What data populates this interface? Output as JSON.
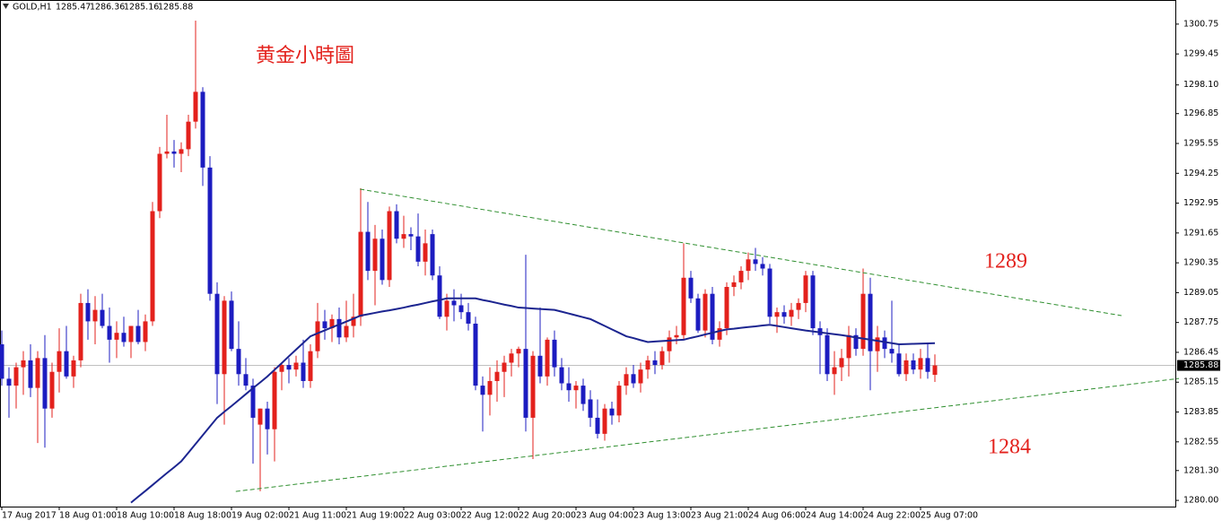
{
  "chart_data": {
    "type": "candlestick",
    "title": "黄金小時圖",
    "symbol": "GOLD,H1",
    "annotations": [
      "1289",
      "1284"
    ],
    "up_color": "#e3211c",
    "down_color": "#1c1cc0",
    "categories": [
      "17 Aug 2017",
      null,
      null,
      null,
      null,
      null,
      null,
      null,
      "18 Aug 01:00",
      null,
      null,
      null,
      null,
      null,
      null,
      null,
      "18 Aug 10:00",
      null,
      null,
      null,
      null,
      null,
      null,
      null,
      "18 Aug 18:00",
      null,
      null,
      null,
      null,
      null,
      null,
      null,
      "19 Aug 02:00",
      null,
      null,
      null,
      null,
      null,
      null,
      null,
      "21 Aug 11:00",
      null,
      null,
      null,
      null,
      null,
      null,
      null,
      "21 Aug 19:00",
      null,
      null,
      null,
      null,
      null,
      null,
      null,
      "22 Aug 03:00",
      null,
      null,
      null,
      null,
      null,
      null,
      null,
      "22 Aug 12:00",
      null,
      null,
      null,
      null,
      null,
      null,
      null,
      "22 Aug 20:00",
      null,
      null,
      null,
      null,
      null,
      null,
      null,
      "23 Aug 04:00",
      null,
      null,
      null,
      null,
      null,
      null,
      null,
      "23 Aug 13:00",
      null,
      null,
      null,
      null,
      null,
      null,
      null,
      "23 Aug 21:00",
      null,
      null,
      null,
      null,
      null,
      null,
      null,
      "24 Aug 06:00",
      null,
      null,
      null,
      null,
      null,
      null,
      null,
      "24 Aug 14:00",
      null,
      null,
      null,
      null,
      null,
      null,
      null,
      "24 Aug 22:00",
      null,
      null,
      null,
      null,
      null,
      null,
      null,
      "25 Aug 07:00",
      null,
      null
    ],
    "open": [
      1286.8,
      1285.3,
      1285.0,
      1285.8,
      1286.1,
      1284.9,
      1286.2,
      1284.0,
      1285.6,
      1286.5,
      1285.4,
      1286.1,
      1288.6,
      1287.8,
      1288.3,
      1287.6,
      1287.0,
      1287.3,
      1286.9,
      1287.6,
      1286.9,
      1287.8,
      1292.6,
      1295.1,
      1295.2,
      1295.1,
      1295.3,
      1296.5,
      1297.8,
      1294.5,
      1289.0,
      1285.5,
      1288.7,
      1286.6,
      1285.5,
      1285.0,
      1283.3,
      1284.0,
      1283.1,
      1285.6,
      1285.9,
      1285.7,
      1286.0,
      1285.2,
      1286.5,
      1287.8,
      1287.5,
      1287.9,
      1287.1,
      1287.6,
      1288.0,
      1291.7,
      1290.0,
      1291.4,
      1289.6,
      1292.6,
      1291.4,
      1291.6,
      1291.5,
      1290.4,
      1291.6,
      1289.8,
      1288.0,
      1288.7,
      1288.5,
      1288.2,
      1287.7,
      1285.0,
      1284.6,
      1285.2,
      1285.6,
      1286.0,
      1286.4,
      1286.6,
      1283.6,
      1286.3,
      1285.4,
      1287.0,
      1285.8,
      1285.1,
      1284.8,
      1285.0,
      1284.4,
      1283.6,
      1282.9,
      1284.0,
      1283.7,
      1285.0,
      1285.5,
      1285.1,
      1285.7,
      1286.1,
      1285.9,
      1286.5,
      1287.1,
      1287.2,
      1289.7,
      1288.8,
      1287.4,
      1289.0,
      1287.0,
      1287.5,
      1289.3,
      1289.5,
      1290.0,
      1290.5,
      1290.3,
      1290.1,
      1288.0,
      1288.2,
      1288.0,
      1288.3,
      1288.6,
      1289.8,
      1287.5,
      1287.2,
      1285.5,
      1285.8,
      1286.2,
      1287.2,
      1286.6,
      1289.0,
      1286.5,
      1287.1,
      1286.6,
      1286.4,
      1285.5,
      1286.1,
      1285.7,
      1286.2,
      1285.47
    ],
    "high": [
      1287.4,
      1285.8,
      1286.0,
      1286.5,
      1286.8,
      1286.5,
      1287.2,
      1286.0,
      1287.5,
      1287.6,
      1286.3,
      1289.0,
      1289.2,
      1288.9,
      1289.0,
      1288.4,
      1287.8,
      1288.0,
      1287.6,
      1288.3,
      1288.1,
      1293.0,
      1295.4,
      1296.8,
      1295.7,
      1295.6,
      1296.8,
      1300.9,
      1298.0,
      1295.0,
      1289.5,
      1288.9,
      1289.1,
      1287.8,
      1286.2,
      1285.3,
      1284.0,
      1284.3,
      1285.8,
      1286.0,
      1286.2,
      1286.3,
      1287.0,
      1286.8,
      1288.6,
      1288.3,
      1288.1,
      1288.4,
      1288.7,
      1289.0,
      1293.6,
      1293.0,
      1292.0,
      1291.8,
      1292.8,
      1292.9,
      1292.4,
      1291.9,
      1292.5,
      1291.8,
      1291.8,
      1290.2,
      1289.0,
      1289.2,
      1289.0,
      1288.6,
      1288.0,
      1285.4,
      1285.8,
      1286.1,
      1286.3,
      1286.6,
      1286.7,
      1290.7,
      1286.5,
      1288.4,
      1287.1,
      1287.4,
      1286.2,
      1285.8,
      1285.2,
      1285.3,
      1284.8,
      1284.4,
      1284.2,
      1284.3,
      1285.2,
      1285.8,
      1285.9,
      1286.0,
      1286.3,
      1286.5,
      1286.7,
      1287.4,
      1287.6,
      1291.2,
      1290.0,
      1289.0,
      1289.2,
      1289.3,
      1287.8,
      1289.5,
      1289.8,
      1290.2,
      1290.8,
      1291.0,
      1290.6,
      1290.3,
      1288.4,
      1288.5,
      1288.6,
      1288.8,
      1290.0,
      1290.0,
      1287.8,
      1287.5,
      1286.5,
      1286.6,
      1287.6,
      1287.5,
      1290.1,
      1289.7,
      1287.6,
      1287.4,
      1288.7,
      1286.8,
      1286.4,
      1286.4,
      1286.6,
      1286.8,
      1286.36
    ],
    "low": [
      1285.0,
      1283.6,
      1284.0,
      1284.6,
      1284.5,
      1282.5,
      1282.3,
      1283.6,
      1284.7,
      1285.3,
      1284.9,
      1285.8,
      1287.0,
      1286.8,
      1287.5,
      1286.0,
      1286.2,
      1286.7,
      1286.2,
      1286.8,
      1286.5,
      1287.6,
      1292.3,
      1294.9,
      1294.5,
      1294.3,
      1295.0,
      1296.2,
      1293.7,
      1288.7,
      1284.2,
      1283.3,
      1286.5,
      1285.0,
      1284.8,
      1281.6,
      1280.4,
      1282.0,
      1281.7,
      1284.8,
      1285.1,
      1285.4,
      1284.9,
      1284.9,
      1286.2,
      1287.0,
      1286.9,
      1286.8,
      1286.9,
      1287.1,
      1287.6,
      1289.6,
      1288.5,
      1289.4,
      1289.3,
      1291.2,
      1291.0,
      1290.9,
      1290.2,
      1289.8,
      1289.6,
      1287.9,
      1287.4,
      1287.8,
      1287.9,
      1287.4,
      1284.8,
      1283.0,
      1283.7,
      1284.3,
      1284.5,
      1285.4,
      1285.8,
      1283.0,
      1281.8,
      1285.1,
      1285.0,
      1285.4,
      1284.8,
      1284.3,
      1284.0,
      1283.9,
      1283.2,
      1282.7,
      1282.6,
      1283.3,
      1283.4,
      1284.6,
      1284.9,
      1284.7,
      1285.3,
      1285.5,
      1285.7,
      1286.0,
      1286.8,
      1287.0,
      1288.6,
      1287.3,
      1287.1,
      1286.8,
      1286.7,
      1287.2,
      1288.9,
      1289.2,
      1289.6,
      1290.0,
      1289.8,
      1287.7,
      1287.3,
      1287.7,
      1287.6,
      1287.9,
      1288.2,
      1287.2,
      1285.5,
      1285.2,
      1284.6,
      1285.2,
      1285.4,
      1286.3,
      1286.3,
      1284.8,
      1285.6,
      1286.2,
      1286.0,
      1285.4,
      1285.2,
      1285.5,
      1285.3,
      1285.3,
      1285.16
    ],
    "close": [
      1285.3,
      1285.0,
      1285.8,
      1286.1,
      1284.9,
      1286.2,
      1284.0,
      1285.6,
      1286.5,
      1285.4,
      1286.1,
      1288.6,
      1287.8,
      1288.3,
      1287.6,
      1287.0,
      1287.3,
      1286.9,
      1287.6,
      1286.9,
      1287.8,
      1292.6,
      1295.1,
      1295.2,
      1295.1,
      1295.3,
      1296.5,
      1297.8,
      1294.5,
      1289.0,
      1285.5,
      1288.7,
      1286.6,
      1285.5,
      1285.0,
      1283.6,
      1284.0,
      1283.1,
      1285.6,
      1285.9,
      1285.7,
      1286.0,
      1285.2,
      1286.5,
      1287.8,
      1287.5,
      1287.9,
      1287.1,
      1287.6,
      1288.0,
      1291.7,
      1290.0,
      1291.4,
      1289.6,
      1292.6,
      1291.4,
      1291.6,
      1291.5,
      1290.4,
      1291.2,
      1289.8,
      1288.0,
      1288.7,
      1288.5,
      1288.2,
      1287.7,
      1285.0,
      1284.6,
      1285.2,
      1285.6,
      1286.0,
      1286.4,
      1286.6,
      1283.6,
      1286.3,
      1285.4,
      1287.0,
      1285.8,
      1285.1,
      1284.8,
      1285.0,
      1284.2,
      1283.6,
      1282.9,
      1284.0,
      1283.7,
      1285.0,
      1285.5,
      1285.1,
      1285.7,
      1286.1,
      1285.9,
      1286.5,
      1287.1,
      1287.2,
      1289.7,
      1288.8,
      1287.4,
      1289.0,
      1287.0,
      1287.5,
      1289.3,
      1289.5,
      1290.0,
      1290.5,
      1290.3,
      1290.1,
      1288.0,
      1288.2,
      1288.0,
      1288.3,
      1288.6,
      1289.8,
      1287.5,
      1287.2,
      1285.5,
      1285.8,
      1286.2,
      1287.2,
      1286.6,
      1289.0,
      1286.5,
      1287.1,
      1286.6,
      1286.4,
      1285.5,
      1286.1,
      1285.7,
      1286.2,
      1285.6,
      1285.88
    ],
    "ma": {
      "color": "#1c2590",
      "values": [
        null,
        null,
        null,
        null,
        null,
        null,
        null,
        null,
        null,
        null,
        null,
        null,
        null,
        null,
        null,
        null,
        null,
        null,
        1279.9,
        1280.16,
        1280.41,
        1280.67,
        1280.93,
        1281.19,
        1281.44,
        1281.7,
        1282.08,
        1282.46,
        1282.84,
        1283.22,
        1283.6,
        1283.86,
        1284.11,
        1284.37,
        1284.63,
        1284.89,
        1285.14,
        1285.4,
        1285.69,
        1285.98,
        1286.28,
        1286.57,
        1286.86,
        1287.15,
        1287.28,
        1287.41,
        1287.54,
        1287.66,
        1287.79,
        1287.92,
        1288.05,
        1288.11,
        1288.17,
        1288.23,
        1288.28,
        1288.34,
        1288.4,
        1288.47,
        1288.53,
        1288.6,
        1288.67,
        1288.73,
        1288.8,
        1288.8,
        1288.8,
        1288.8,
        1288.8,
        1288.73,
        1288.67,
        1288.6,
        1288.53,
        1288.47,
        1288.4,
        1288.38,
        1288.36,
        1288.34,
        1288.32,
        1288.3,
        1288.22,
        1288.14,
        1288.06,
        1287.98,
        1287.9,
        1287.75,
        1287.6,
        1287.45,
        1287.3,
        1287.15,
        1287.07,
        1286.98,
        1286.9,
        1286.92,
        1286.94,
        1286.96,
        1286.98,
        1287.0,
        1287.08,
        1287.15,
        1287.23,
        1287.3,
        1287.38,
        1287.45,
        1287.48,
        1287.52,
        1287.55,
        1287.58,
        1287.62,
        1287.65,
        1287.6,
        1287.55,
        1287.5,
        1287.45,
        1287.4,
        1287.36,
        1287.32,
        1287.28,
        1287.24,
        1287.2,
        1287.15,
        1287.1,
        1287.05,
        1287.0,
        1286.95,
        1286.9,
        1286.85,
        1286.8,
        1286.81,
        1286.82,
        1286.83,
        1286.84,
        1286.85
      ]
    },
    "trendlines": [
      {
        "color": "#2f8f2f",
        "x": [
          49.9,
          156
        ],
        "values": [
          1293.56,
          1288.05
        ]
      },
      {
        "color": "#2f8f2f",
        "x": [
          32.6,
          164
        ],
        "values": [
          1280.39,
          1285.31
        ]
      }
    ],
    "ylim": [
      1279.73,
      1301.8
    ],
    "yticks": [
      1300.75,
      1299.45,
      {
        "value": 1298.1,
        "label": "1298.10"
      },
      1296.85,
      1295.55,
      1294.25,
      1292.95,
      1291.65,
      1290.35,
      1289.05,
      1287.75,
      1286.45,
      1285.15,
      1283.85,
      1282.55,
      {
        "value": 1281.3,
        "label": "1281.30"
      },
      {
        "value": 1280,
        "label": "1280.00"
      }
    ]
  }
}
